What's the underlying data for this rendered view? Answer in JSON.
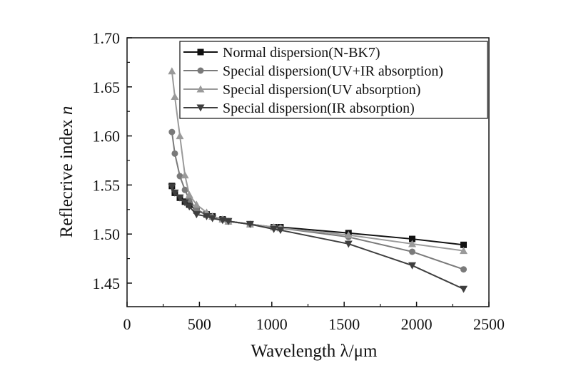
{
  "chart_data": {
    "type": "line",
    "xlabel": "Wavelength  λ/μm",
    "ylabel_main": "Reflecrive index ",
    "ylabel_italic": "n",
    "xlim": [
      0,
      2500
    ],
    "ylim": [
      1.426,
      1.7
    ],
    "xticks": [
      0,
      500,
      1000,
      1500,
      2000,
      2500
    ],
    "xtick_labels": [
      "0",
      "500",
      "1000",
      "1500",
      "2000",
      "2500"
    ],
    "yticks": [
      1.45,
      1.5,
      1.55,
      1.6,
      1.65,
      1.7
    ],
    "ytick_labels": [
      "1.45",
      "1.50",
      "1.55",
      "1.60",
      "1.65",
      "1.70"
    ],
    "legend_placement": "top-right",
    "x": [
      310,
      330,
      365,
      400,
      430,
      480,
      550,
      590,
      660,
      700,
      850,
      1014,
      1060,
      1530,
      1970,
      2325
    ],
    "series": [
      {
        "name": "Normal dispersion(N-BK7)",
        "marker": "square",
        "color": "#111111",
        "values": [
          1.549,
          1.542,
          1.537,
          1.533,
          1.53,
          1.524,
          1.52,
          1.518,
          1.515,
          1.513,
          1.51,
          1.507,
          1.507,
          1.501,
          1.495,
          1.489
        ]
      },
      {
        "name": "Special dispersion(UV+IR absorption)",
        "marker": "circle",
        "color": "#7a7a7a",
        "values": [
          1.604,
          1.582,
          1.559,
          1.545,
          1.535,
          1.525,
          1.52,
          1.517,
          1.515,
          1.513,
          1.51,
          1.507,
          1.506,
          1.497,
          1.482,
          1.464
        ]
      },
      {
        "name": "Special dispersion(UV absorption)",
        "marker": "triangle",
        "color": "#9a9a9a",
        "values": [
          1.666,
          1.64,
          1.6,
          1.56,
          1.54,
          1.53,
          1.522,
          1.518,
          1.515,
          1.513,
          1.51,
          1.507,
          1.506,
          1.499,
          1.49,
          1.483
        ]
      },
      {
        "name": "Special dispersion(IR absorption)",
        "marker": "triangle-down",
        "color": "#3e3e3e",
        "values": [
          1.548,
          1.542,
          1.537,
          1.532,
          1.528,
          1.52,
          1.518,
          1.516,
          1.514,
          1.513,
          1.51,
          1.505,
          1.504,
          1.49,
          1.468,
          1.444
        ]
      }
    ]
  }
}
